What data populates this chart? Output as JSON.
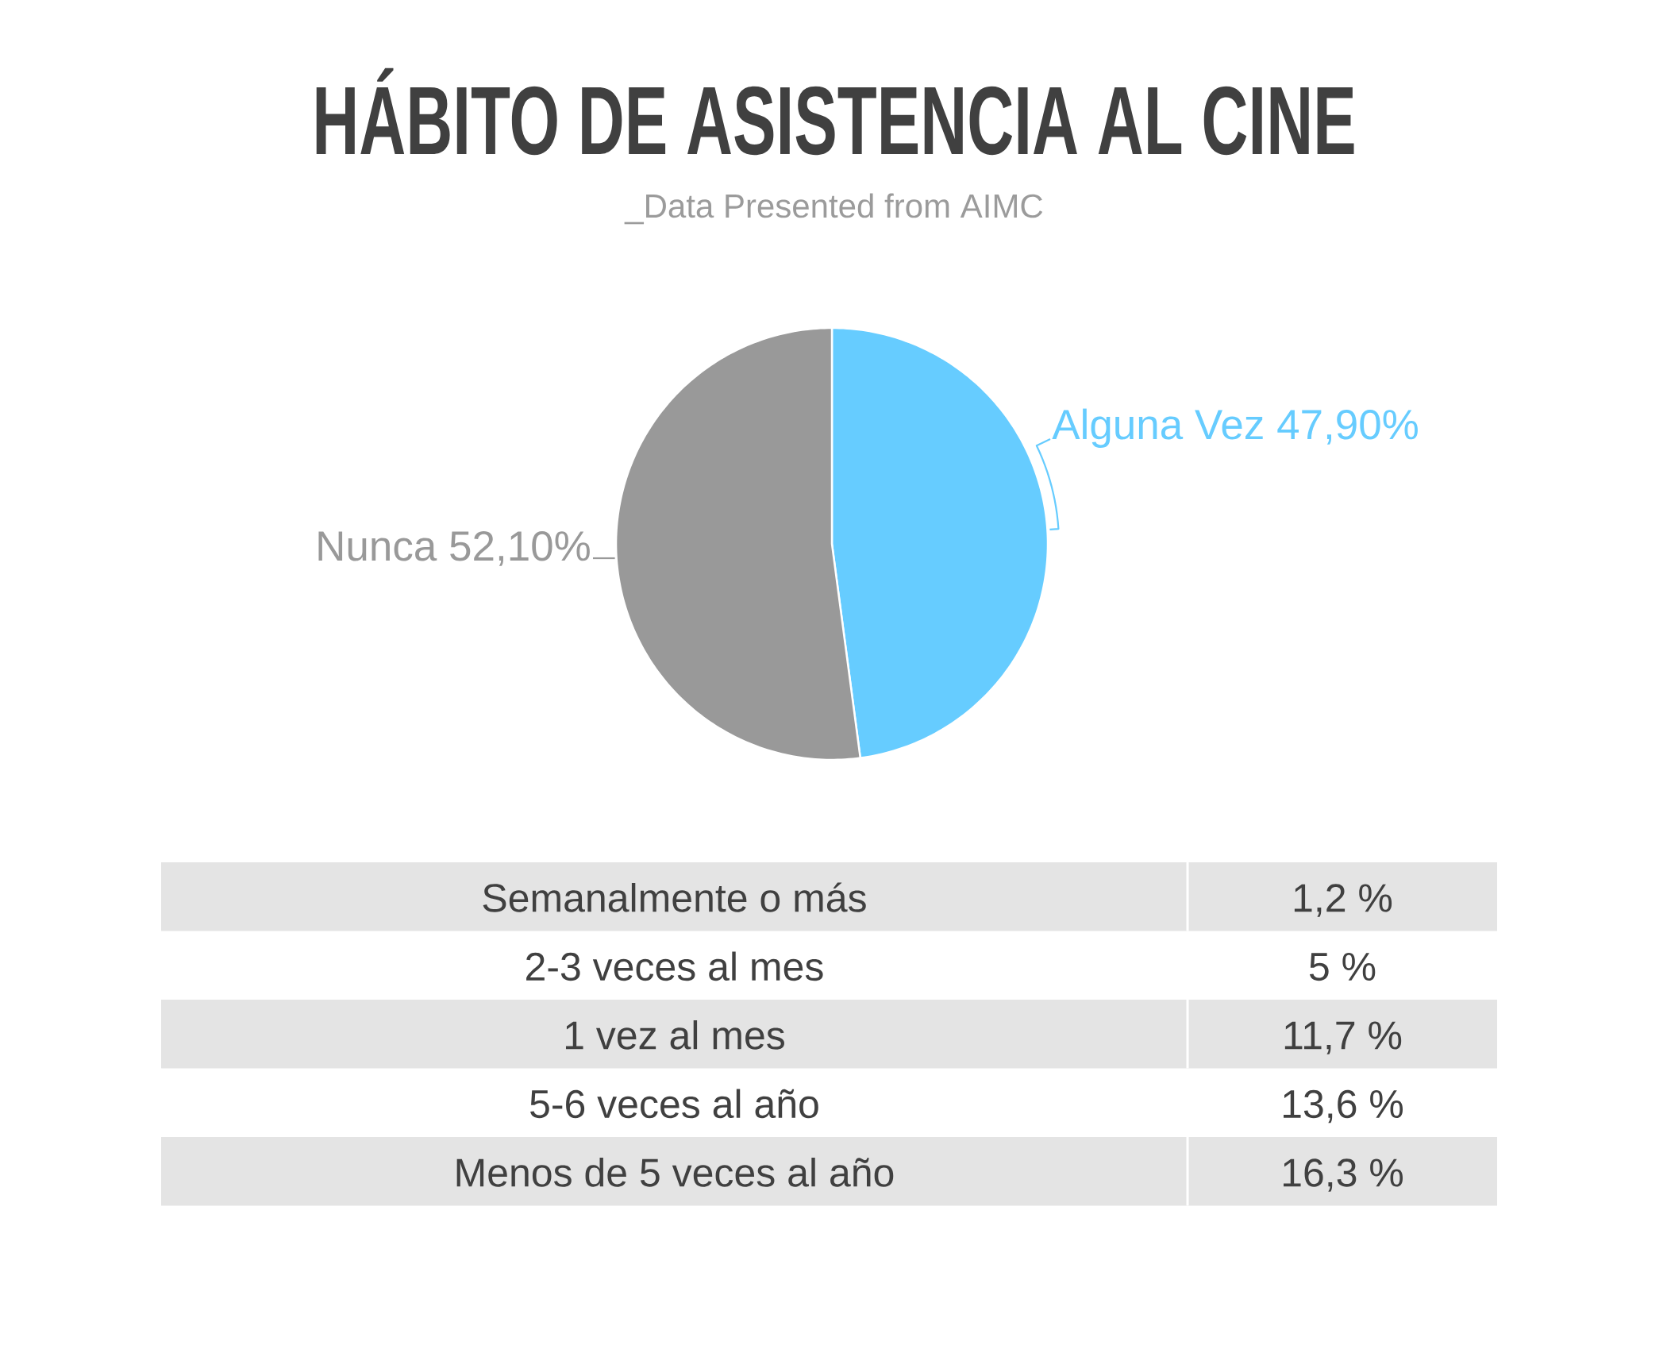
{
  "chart_data": [
    {
      "type": "pie",
      "title": "HÁBITO DE ASISTENCIA AL CINE",
      "subtitle": "_Data Presented from AIMC",
      "categories": [
        "Alguna Vez",
        "Nunca"
      ],
      "values": [
        47.9,
        52.1
      ],
      "value_labels": [
        "47,90%",
        "52,10%"
      ],
      "colors": [
        "#66ccff",
        "#999999"
      ]
    },
    {
      "type": "other",
      "categories": [
        "Semanalmente o más",
        "2-3 veces al mes",
        "1 vez al mes",
        "5-6 veces al año",
        "Menos de 5 veces al año"
      ],
      "value_labels": [
        "1,2 %",
        "5 %",
        "11,7 %",
        "13,6 %",
        "16,3 %"
      ]
    }
  ]
}
